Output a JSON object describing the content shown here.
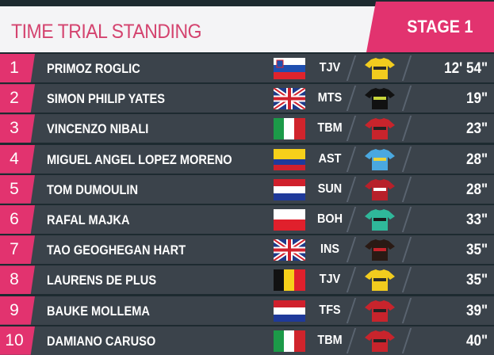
{
  "header": {
    "title": "TIME TRIAL STANDING",
    "stage": "STAGE 1"
  },
  "colors": {
    "accent": "#e2336f",
    "row": "#3b434b"
  },
  "rows": [
    {
      "rank": "1",
      "name": "PRIMOZ ROGLIC",
      "flag": "slovenia",
      "team": "TJV",
      "jersey": [
        "#f2cc1e",
        "#2a2a2a"
      ],
      "time": "12' 54\""
    },
    {
      "rank": "2",
      "name": "SIMON PHILIP YATES",
      "flag": "great-britain",
      "team": "MTS",
      "jersey": [
        "#111111",
        "#c8d63a"
      ],
      "time": "19\""
    },
    {
      "rank": "3",
      "name": "VINCENZO NIBALI",
      "flag": "italy",
      "team": "TBM",
      "jersey": [
        "#c8242c",
        "#222222"
      ],
      "time": "23\""
    },
    {
      "rank": "4",
      "name": "MIGUEL ANGEL LOPEZ MORENO",
      "flag": "colombia",
      "team": "AST",
      "jersey": [
        "#4aa8e0",
        "#e8d23a"
      ],
      "time": "28\""
    },
    {
      "rank": "5",
      "name": "TOM DUMOULIN",
      "flag": "netherlands",
      "team": "SUN",
      "jersey": [
        "#b8202a",
        "#ffffff"
      ],
      "time": "28\""
    },
    {
      "rank": "6",
      "name": "RAFAL MAJKA",
      "flag": "poland",
      "team": "BOH",
      "jersey": [
        "#2fb89a",
        "#1a1a1a"
      ],
      "time": "33\""
    },
    {
      "rank": "7",
      "name": "TAO GEOGHEGAN HART",
      "flag": "great-britain",
      "team": "INS",
      "jersey": [
        "#2a1a14",
        "#c8242c"
      ],
      "time": "35\""
    },
    {
      "rank": "8",
      "name": "LAURENS DE PLUS",
      "flag": "belgium",
      "team": "TJV",
      "jersey": [
        "#f2cc1e",
        "#2a2a2a"
      ],
      "time": "35\""
    },
    {
      "rank": "9",
      "name": "BAUKE MOLLEMA",
      "flag": "netherlands",
      "team": "TFS",
      "jersey": [
        "#c8242c",
        "#222222"
      ],
      "time": "39\""
    },
    {
      "rank": "10",
      "name": "DAMIANO CARUSO",
      "flag": "italy",
      "team": "TBM",
      "jersey": [
        "#c8242c",
        "#222222"
      ],
      "time": "40\""
    }
  ]
}
